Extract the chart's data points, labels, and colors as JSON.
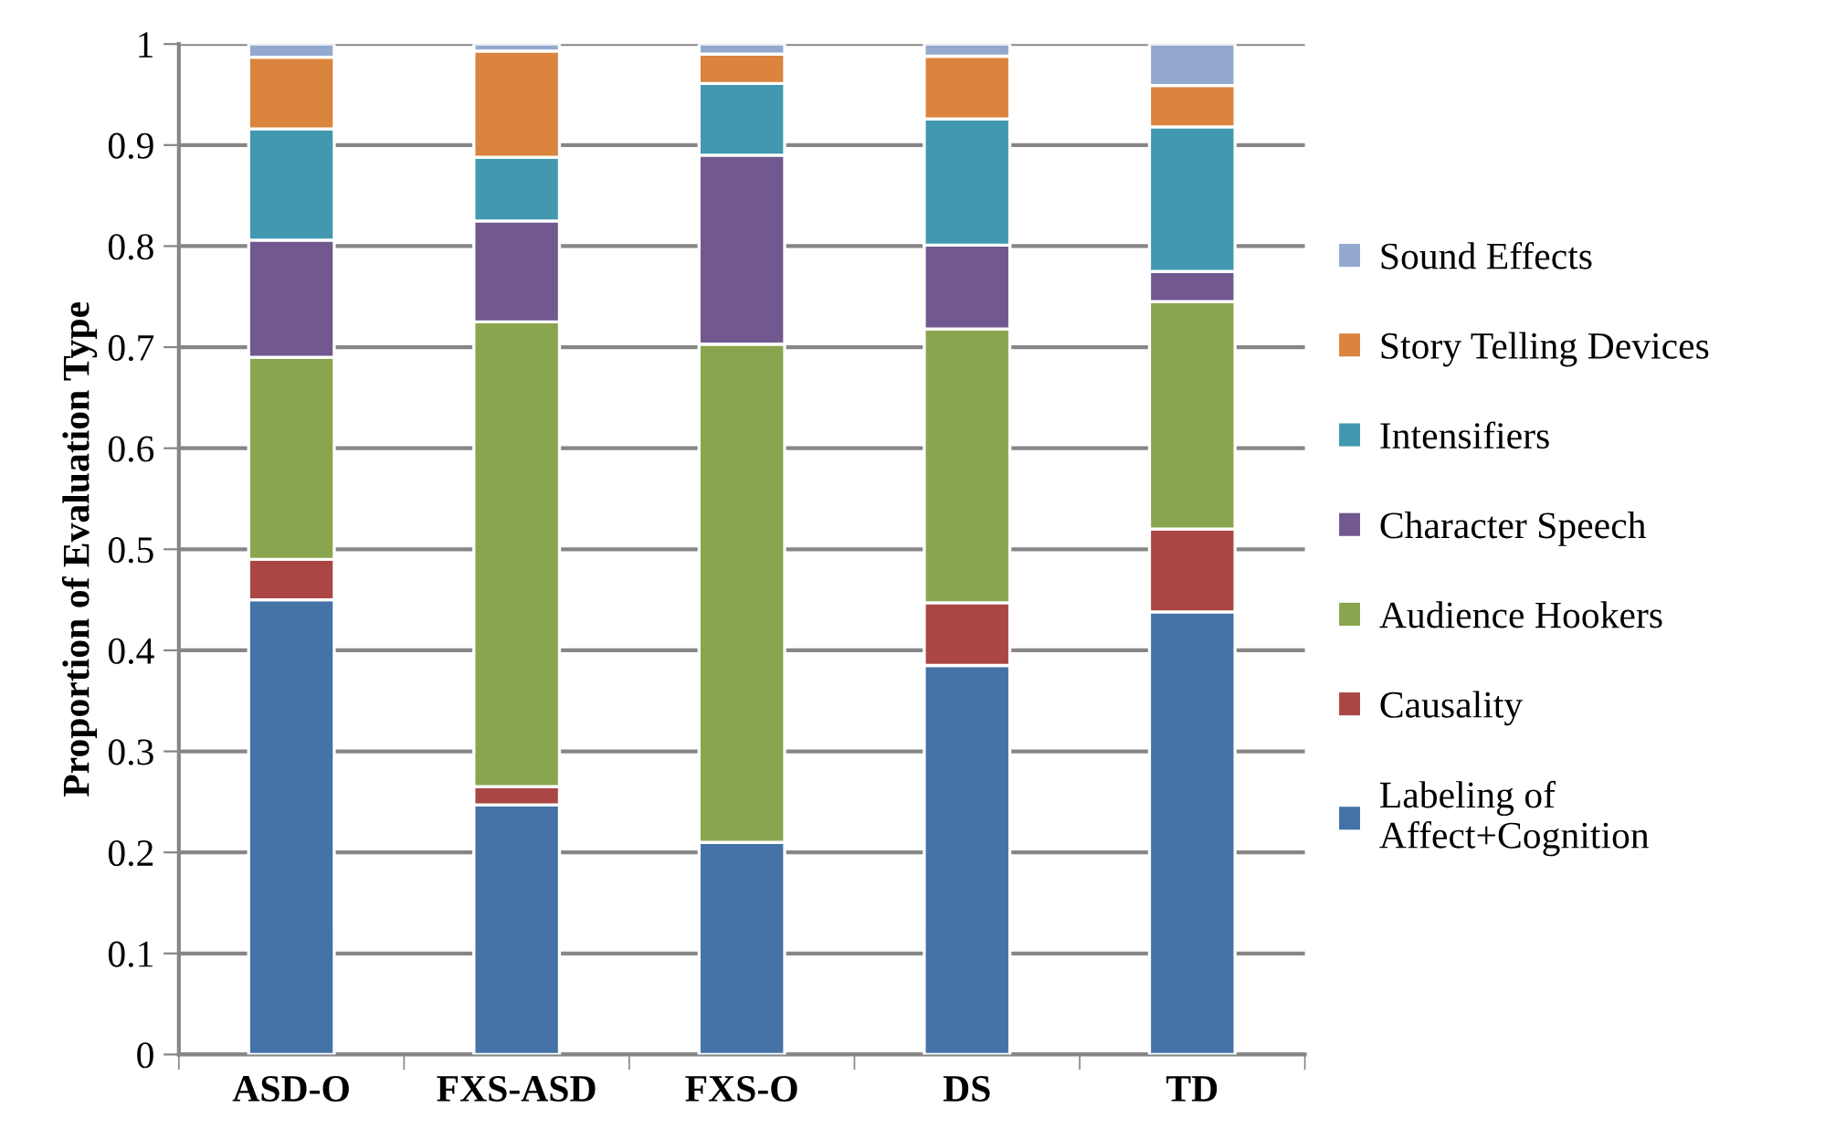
{
  "chart_data": {
    "type": "bar",
    "stacked": true,
    "ylabel": "Proportion of Evaluation Type",
    "categories": [
      "ASD-O",
      "FXS-ASD",
      "FXS-O",
      "DS",
      "TD"
    ],
    "series": [
      {
        "name": "Labeling of\nAffect+Cognition",
        "color": "#4572a7",
        "values": [
          0.45,
          0.247,
          0.21,
          0.385,
          0.438
        ]
      },
      {
        "name": "Causality",
        "color": "#aa4643",
        "values": [
          0.04,
          0.018,
          0.0,
          0.062,
          0.082
        ]
      },
      {
        "name": "Audience Hookers",
        "color": "#89a54e",
        "values": [
          0.2,
          0.46,
          0.493,
          0.271,
          0.225
        ]
      },
      {
        "name": "Character Speech",
        "color": "#71588f",
        "values": [
          0.116,
          0.1,
          0.187,
          0.083,
          0.03
        ]
      },
      {
        "name": "Intensifiers",
        "color": "#4198af",
        "values": [
          0.11,
          0.063,
          0.071,
          0.125,
          0.143
        ]
      },
      {
        "name": "Story Telling Devices",
        "color": "#db843d",
        "values": [
          0.071,
          0.105,
          0.029,
          0.062,
          0.041
        ]
      },
      {
        "name": "Sound Effects",
        "color": "#93a9cf",
        "values": [
          0.013,
          0.007,
          0.01,
          0.012,
          0.041
        ]
      }
    ],
    "ylim": [
      0,
      1
    ],
    "yticks": [
      0,
      0.1,
      0.2,
      0.3,
      0.4,
      0.5,
      0.6,
      0.7,
      0.8,
      0.9,
      1
    ],
    "grid": "y",
    "legend": "right"
  }
}
